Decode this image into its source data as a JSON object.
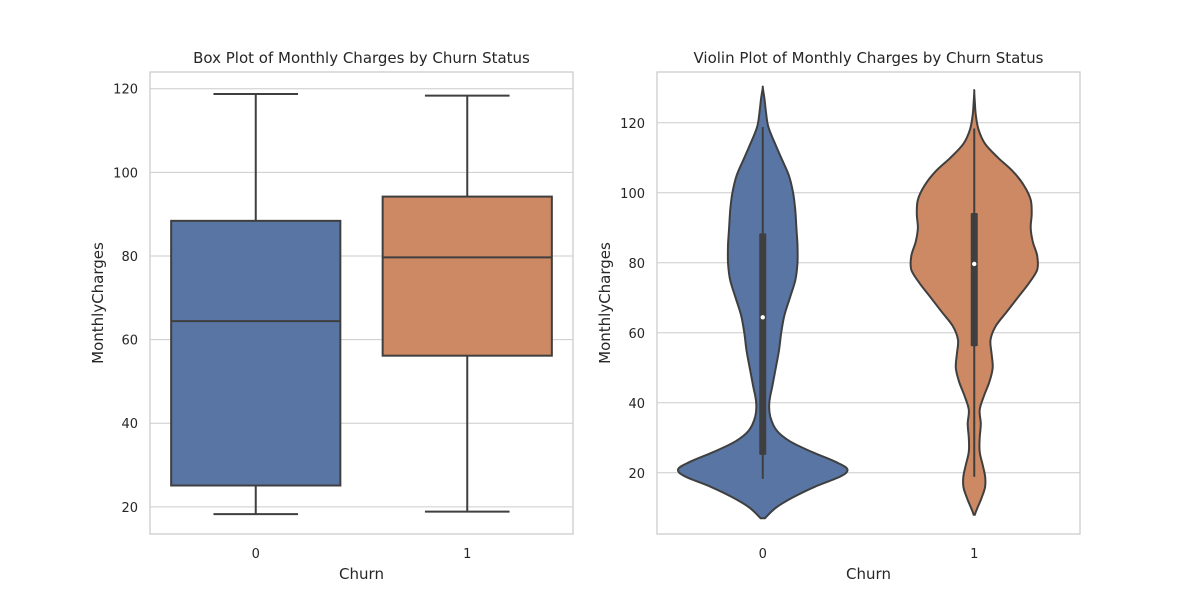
{
  "chart_data": [
    {
      "type": "box",
      "title": "Box Plot of Monthly Charges by Churn Status",
      "xlabel": "Churn",
      "ylabel": "MonthlyCharges",
      "categories": [
        "0",
        "1"
      ],
      "ylim": [
        13.5,
        124
      ],
      "yticks": [
        20,
        40,
        60,
        80,
        100,
        120
      ],
      "grid": true,
      "colors": [
        "#5875a4",
        "#cc8963"
      ],
      "edge_color": "#3f3f3f",
      "boxes": [
        {
          "category": "0",
          "whislo": 18.25,
          "q1": 25.1,
          "median": 64.4,
          "q3": 88.4,
          "whishi": 118.75
        },
        {
          "category": "1",
          "whislo": 18.85,
          "q1": 56.15,
          "median": 79.65,
          "q3": 94.2,
          "whishi": 118.35
        }
      ]
    },
    {
      "type": "violin",
      "title": "Violin Plot of Monthly Charges by Churn Status",
      "xlabel": "Churn",
      "ylabel": "MonthlyCharges",
      "categories": [
        "0",
        "1"
      ],
      "ylim": [
        2.5,
        134.5
      ],
      "yticks": [
        20,
        40,
        60,
        80,
        100,
        120
      ],
      "grid": true,
      "colors": [
        "#5875a4",
        "#cc8963"
      ],
      "edge_color": "#3f3f3f",
      "violins": [
        {
          "category": "0",
          "min": 18.25,
          "q1": 25.1,
          "median": 64.4,
          "q3": 88.4,
          "max": 118.75,
          "profile": [
            [
              7,
              0.02
            ],
            [
              10,
              0.12
            ],
            [
              13,
              0.28
            ],
            [
              16,
              0.48
            ],
            [
              19,
              0.72
            ],
            [
              21,
              0.78
            ],
            [
              23,
              0.68
            ],
            [
              26,
              0.45
            ],
            [
              29,
              0.25
            ],
            [
              32,
              0.13
            ],
            [
              36,
              0.07
            ],
            [
              40,
              0.06
            ],
            [
              45,
              0.09
            ],
            [
              50,
              0.12
            ],
            [
              55,
              0.15
            ],
            [
              60,
              0.17
            ],
            [
              65,
              0.2
            ],
            [
              70,
              0.25
            ],
            [
              75,
              0.3
            ],
            [
              80,
              0.32
            ],
            [
              85,
              0.32
            ],
            [
              90,
              0.31
            ],
            [
              95,
              0.3
            ],
            [
              100,
              0.28
            ],
            [
              105,
              0.24
            ],
            [
              110,
              0.17
            ],
            [
              115,
              0.1
            ],
            [
              119,
              0.05
            ],
            [
              123,
              0.03
            ],
            [
              127,
              0.015
            ],
            [
              130,
              0.0
            ]
          ]
        },
        {
          "category": "1",
          "min": 18.85,
          "q1": 56.15,
          "median": 79.65,
          "q3": 94.2,
          "max": 118.35,
          "profile": [
            [
              8,
              0.005
            ],
            [
              10,
              0.03
            ],
            [
              13,
              0.07
            ],
            [
              16,
              0.1
            ],
            [
              19,
              0.1
            ],
            [
              22,
              0.08
            ],
            [
              26,
              0.05
            ],
            [
              30,
              0.05
            ],
            [
              34,
              0.06
            ],
            [
              38,
              0.05
            ],
            [
              42,
              0.09
            ],
            [
              46,
              0.14
            ],
            [
              50,
              0.17
            ],
            [
              54,
              0.16
            ],
            [
              58,
              0.15
            ],
            [
              62,
              0.2
            ],
            [
              66,
              0.3
            ],
            [
              70,
              0.4
            ],
            [
              74,
              0.5
            ],
            [
              78,
              0.58
            ],
            [
              82,
              0.58
            ],
            [
              86,
              0.54
            ],
            [
              90,
              0.52
            ],
            [
              94,
              0.53
            ],
            [
              98,
              0.52
            ],
            [
              102,
              0.46
            ],
            [
              106,
              0.36
            ],
            [
              110,
              0.22
            ],
            [
              114,
              0.1
            ],
            [
              118,
              0.04
            ],
            [
              122,
              0.015
            ],
            [
              126,
              0.005
            ],
            [
              129,
              0.0
            ]
          ]
        }
      ]
    }
  ]
}
